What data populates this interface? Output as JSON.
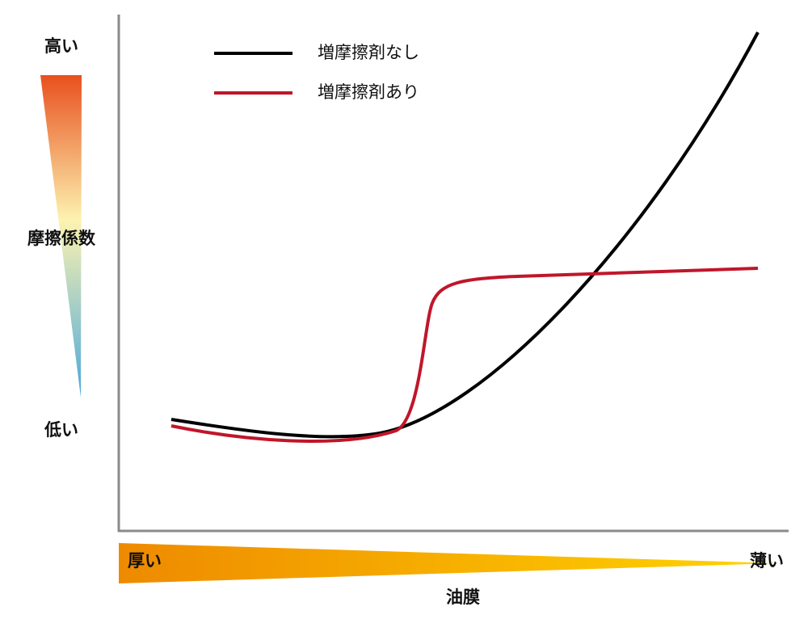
{
  "y_axis": {
    "high": "高い",
    "title": "摩擦係数",
    "low": "低い"
  },
  "x_axis": {
    "thick": "厚い",
    "thin": "薄い",
    "title": "油膜"
  },
  "legend": {
    "items": [
      {
        "label": "増摩擦剤なし"
      },
      {
        "label": "増摩擦剤あり"
      }
    ]
  }
}
